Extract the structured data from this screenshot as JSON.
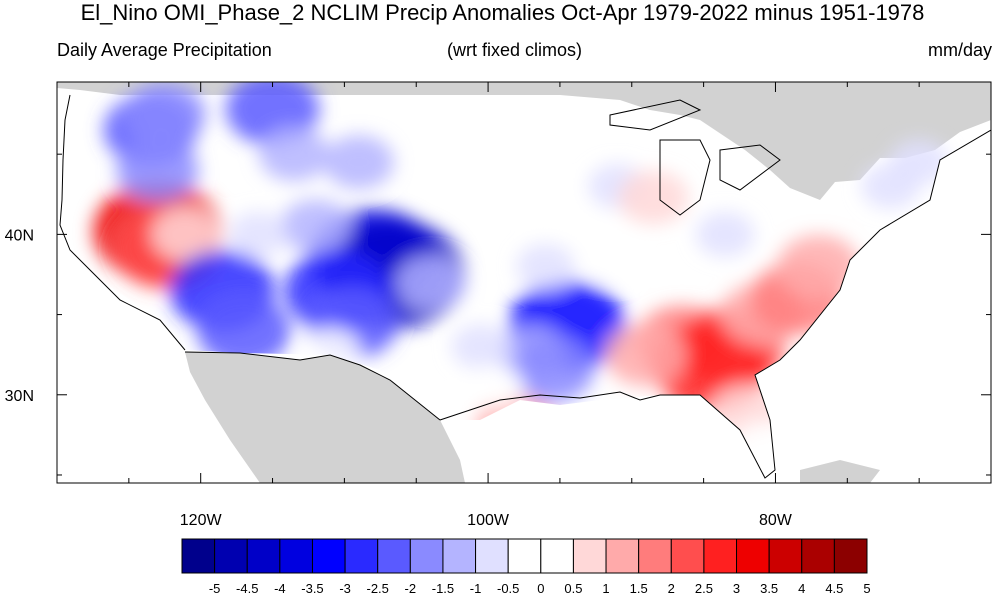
{
  "title": "El_Nino OMI_Phase_2 NCLIM Precip Anomalies Oct-Apr 1979-2022 minus 1951-1978",
  "subtitle_left": "Daily Average Precipitation",
  "subtitle_center": "(wrt fixed climos)",
  "subtitle_right": "mm/day",
  "map": {
    "lon_min": -130.0,
    "lon_max": -65.0,
    "lat_min": 24.5,
    "lat_max": 49.5,
    "x_ticks": [
      {
        "lon": -120,
        "label": "120W"
      },
      {
        "lon": -100,
        "label": "100W"
      },
      {
        "lon": -80,
        "label": "80W"
      }
    ],
    "y_ticks": [
      {
        "lat": 40,
        "label": "40N"
      },
      {
        "lat": 30,
        "label": "30N"
      }
    ],
    "ocean_color": "#ffffff",
    "land_mask_color": "#d2d2d2",
    "coast_color": "#000000"
  },
  "colorbar": {
    "labels": [
      "-5",
      "-4.5",
      "-4",
      "-3.5",
      "-3",
      "-2.5",
      "-2",
      "-1.5",
      "-1",
      "-0.5",
      "0",
      "0.5",
      "1",
      "1.5",
      "2",
      "2.5",
      "3",
      "3.5",
      "4",
      "4.5",
      "5"
    ],
    "colors": [
      "#00008c",
      "#0000b0",
      "#0000c8",
      "#0000e0",
      "#0000ff",
      "#2a2aff",
      "#5a5aff",
      "#8a8aff",
      "#b4b4ff",
      "#e0e0ff",
      "#ffffff",
      "#ffffff",
      "#ffd8d8",
      "#ffaaaa",
      "#ff7c7c",
      "#ff4e4e",
      "#ff2020",
      "#ee0000",
      "#cc0000",
      "#aa0000",
      "#8c0000"
    ]
  },
  "anomalies": [
    {
      "lon": -123.0,
      "lat": 40.2,
      "val": 3.5
    },
    {
      "lon": -122.4,
      "lat": 39.1,
      "val": 2.5
    },
    {
      "lon": -121.0,
      "lat": 40.0,
      "val": 1.0
    },
    {
      "lon": -123.5,
      "lat": 46.5,
      "val": -2.0
    },
    {
      "lon": -122.5,
      "lat": 47.5,
      "val": -1.5
    },
    {
      "lon": -123.0,
      "lat": 44.0,
      "val": -1.5
    },
    {
      "lon": -118.5,
      "lat": 36.5,
      "val": -2.5
    },
    {
      "lon": -117.0,
      "lat": 34.0,
      "val": -2.0
    },
    {
      "lon": -115.0,
      "lat": 47.8,
      "val": -2.0
    },
    {
      "lon": -113.5,
      "lat": 45.0,
      "val": -1.0
    },
    {
      "lon": -109.0,
      "lat": 44.5,
      "val": -1.0
    },
    {
      "lon": -108.0,
      "lat": 38.5,
      "val": -3.5
    },
    {
      "lon": -106.5,
      "lat": 37.5,
      "val": -4.0
    },
    {
      "lon": -110.5,
      "lat": 36.5,
      "val": -2.5
    },
    {
      "lon": -109.5,
      "lat": 34.5,
      "val": -2.0
    },
    {
      "lon": -112.0,
      "lat": 40.5,
      "val": -1.0
    },
    {
      "lon": -116.0,
      "lat": 40.0,
      "val": -0.5
    },
    {
      "lon": -104.0,
      "lat": 37.0,
      "val": -1.0
    },
    {
      "lon": -94.5,
      "lat": 34.3,
      "val": -3.0
    },
    {
      "lon": -97.0,
      "lat": 32.5,
      "val": -1.0
    },
    {
      "lon": -95.5,
      "lat": 31.5,
      "val": -1.5
    },
    {
      "lon": -100.5,
      "lat": 33.0,
      "val": -0.5
    },
    {
      "lon": -96.0,
      "lat": 38.0,
      "val": -0.5
    },
    {
      "lon": -91.0,
      "lat": 43.0,
      "val": -0.5
    },
    {
      "lon": -98.0,
      "lat": 28.0,
      "val": 1.5
    },
    {
      "lon": -99.5,
      "lat": 30.5,
      "val": 0.5
    },
    {
      "lon": -95.5,
      "lat": 42.0,
      "val": 0.5
    },
    {
      "lon": -88.5,
      "lat": 42.3,
      "val": 1.0
    },
    {
      "lon": -91.5,
      "lat": 38.5,
      "val": 0.5
    },
    {
      "lon": -86.5,
      "lat": 33.3,
      "val": 2.0
    },
    {
      "lon": -83.0,
      "lat": 33.0,
      "val": 2.5
    },
    {
      "lon": -84.5,
      "lat": 31.8,
      "val": 3.0
    },
    {
      "lon": -89.0,
      "lat": 32.5,
      "val": 1.5
    },
    {
      "lon": -81.0,
      "lat": 35.0,
      "val": 1.5
    },
    {
      "lon": -78.5,
      "lat": 36.0,
      "val": 2.0
    },
    {
      "lon": -77.0,
      "lat": 38.0,
      "val": 1.5
    },
    {
      "lon": -82.0,
      "lat": 29.0,
      "val": 1.0
    },
    {
      "lon": -80.8,
      "lat": 27.0,
      "val": 0.5
    },
    {
      "lon": -111.0,
      "lat": 32.8,
      "val": 0.5
    },
    {
      "lon": -72.0,
      "lat": 43.0,
      "val": -0.5
    },
    {
      "lon": -70.0,
      "lat": 44.5,
      "val": -0.5
    },
    {
      "lon": -83.5,
      "lat": 40.0,
      "val": -0.5
    }
  ]
}
